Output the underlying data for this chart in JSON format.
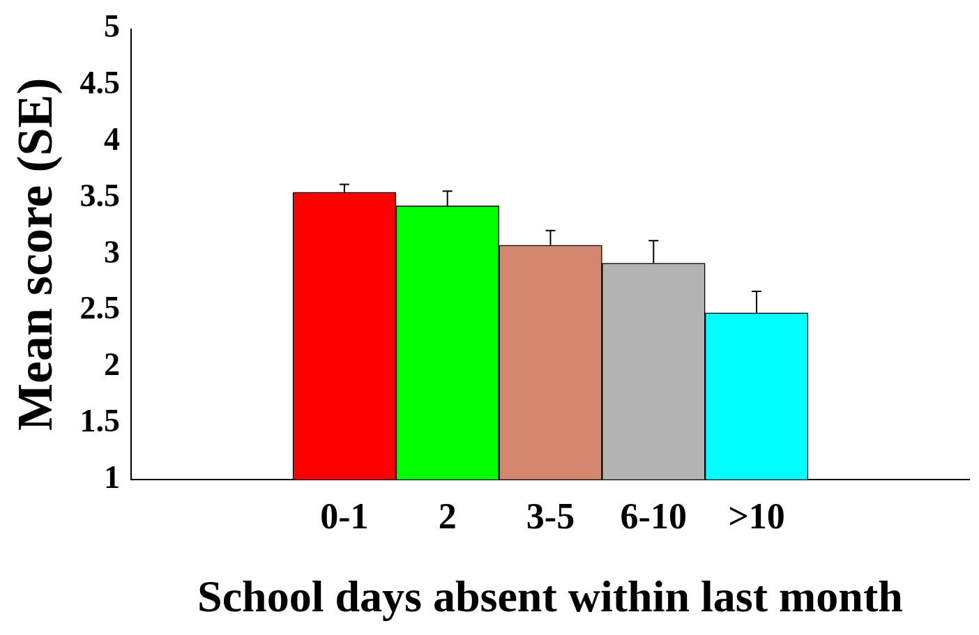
{
  "chart_data": {
    "type": "bar",
    "categories": [
      "0-1",
      "2",
      "3-5",
      "6-10",
      ">10"
    ],
    "values": [
      3.55,
      3.43,
      3.08,
      2.92,
      2.48
    ],
    "colors": [
      "#ff0000",
      "#00ff00",
      "#d2876e",
      "#b3b3b3",
      "#00ffff"
    ],
    "errors": [
      [
        3.55,
        3.62
      ],
      [
        3.43,
        3.56
      ],
      [
        3.08,
        3.21
      ],
      [
        2.92,
        3.12
      ],
      [
        2.48,
        2.67
      ]
    ],
    "xlabel": "School days absent within last month",
    "ylabel": "Mean score (SE)",
    "ylim": [
      1,
      5
    ],
    "yticks": [
      1,
      1.5,
      2,
      2.5,
      3,
      3.5,
      4,
      4.5,
      5
    ],
    "grid": false,
    "legend": false
  }
}
